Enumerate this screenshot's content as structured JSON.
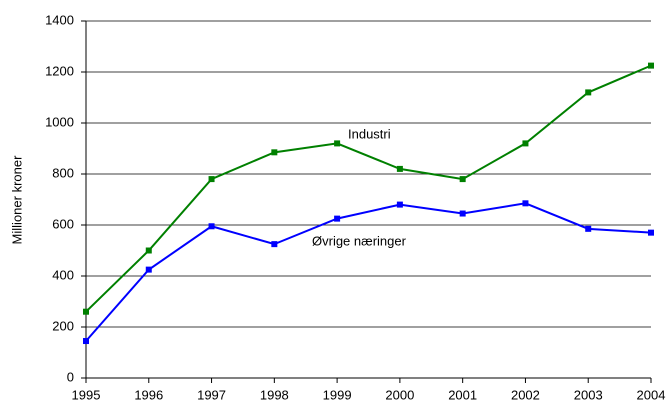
{
  "chart_data": {
    "type": "line",
    "y_label": "Millioner kroner",
    "x": [
      1995,
      1996,
      1997,
      1998,
      1999,
      2000,
      2001,
      2002,
      2003,
      2004
    ],
    "series": [
      {
        "name": "Industri",
        "color": "#008000",
        "values": [
          260,
          500,
          780,
          885,
          920,
          820,
          780,
          920,
          1120,
          1225
        ]
      },
      {
        "name": "Øvrige næringer",
        "color": "#0000ff",
        "values": [
          145,
          425,
          595,
          525,
          625,
          680,
          645,
          685,
          585,
          570
        ]
      }
    ],
    "xlim": [
      1995,
      2004
    ],
    "xticks": [
      1995,
      1996,
      1997,
      1998,
      1999,
      2000,
      2001,
      2002,
      2003,
      2004
    ],
    "ylim": [
      0,
      1400
    ],
    "yticks": [
      0,
      200,
      400,
      600,
      800,
      1000,
      1200,
      1400
    ],
    "grid": true
  }
}
